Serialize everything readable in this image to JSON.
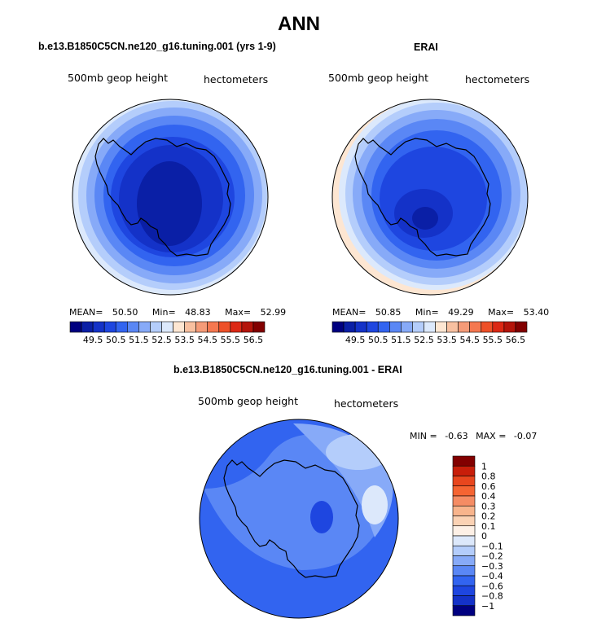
{
  "figure": {
    "title": "ANN"
  },
  "panels": [
    {
      "title": "b.e13.B1850C5CN.ne120_g16.tuning.001 (yrs 1-9)",
      "variable": "500mb geop height",
      "units": "hectometers",
      "stats": {
        "mean_label": "MEAN=",
        "mean": "50.50",
        "min_label": "Min=",
        "min": "48.83",
        "max_label": "Max=",
        "max": "52.99"
      },
      "colorbar_labels": [
        "49.5",
        "50.5",
        "51.5",
        "52.5",
        "53.5",
        "54.5",
        "55.5",
        "56.5"
      ]
    },
    {
      "title": "ERAI",
      "variable": "500mb geop height",
      "units": "hectometers",
      "stats": {
        "mean_label": "MEAN=",
        "mean": "50.85",
        "min_label": "Min=",
        "min": "49.29",
        "max_label": "Max=",
        "max": "53.40"
      },
      "colorbar_labels": [
        "49.5",
        "50.5",
        "51.5",
        "52.5",
        "53.5",
        "54.5",
        "55.5",
        "56.5"
      ]
    },
    {
      "title": "b.e13.B1850C5CN.ne120_g16.tuning.001 - ERAI",
      "variable": "500mb geop height",
      "units": "hectometers",
      "stats": {
        "min_label": "MIN =",
        "min": "-0.63",
        "max_label": "MAX =",
        "max": "-0.07"
      },
      "colorbar_labels": [
        "1",
        "0.8",
        "0.6",
        "0.4",
        "0.3",
        "0.2",
        "0.1",
        "0",
        "−0.1",
        "−0.2",
        "−0.3",
        "−0.4",
        "−0.6",
        "−0.8",
        "−1"
      ]
    }
  ],
  "palette": {
    "main": [
      "#000080",
      "#0a1fa6",
      "#1432c8",
      "#1e46e0",
      "#3264f0",
      "#5a87f5",
      "#87aaf8",
      "#b4cdfb",
      "#dce9fc",
      "#fde6d2",
      "#f8c0a0",
      "#f59b78",
      "#f57850",
      "#ee5028",
      "#dc2814",
      "#b4140a",
      "#820000"
    ],
    "diff": [
      "#820000",
      "#c81e0a",
      "#e8461e",
      "#f56432",
      "#f58c64",
      "#f8b48c",
      "#fbd2b4",
      "#fdf0e6",
      "#dce8fb",
      "#b4cdfb",
      "#87aaf8",
      "#5a87f5",
      "#3264f0",
      "#1e46e0",
      "#1432c8",
      "#000080"
    ]
  },
  "map_data": {
    "projection": "polar-stereographic-south",
    "coastline": "Antarctica"
  }
}
